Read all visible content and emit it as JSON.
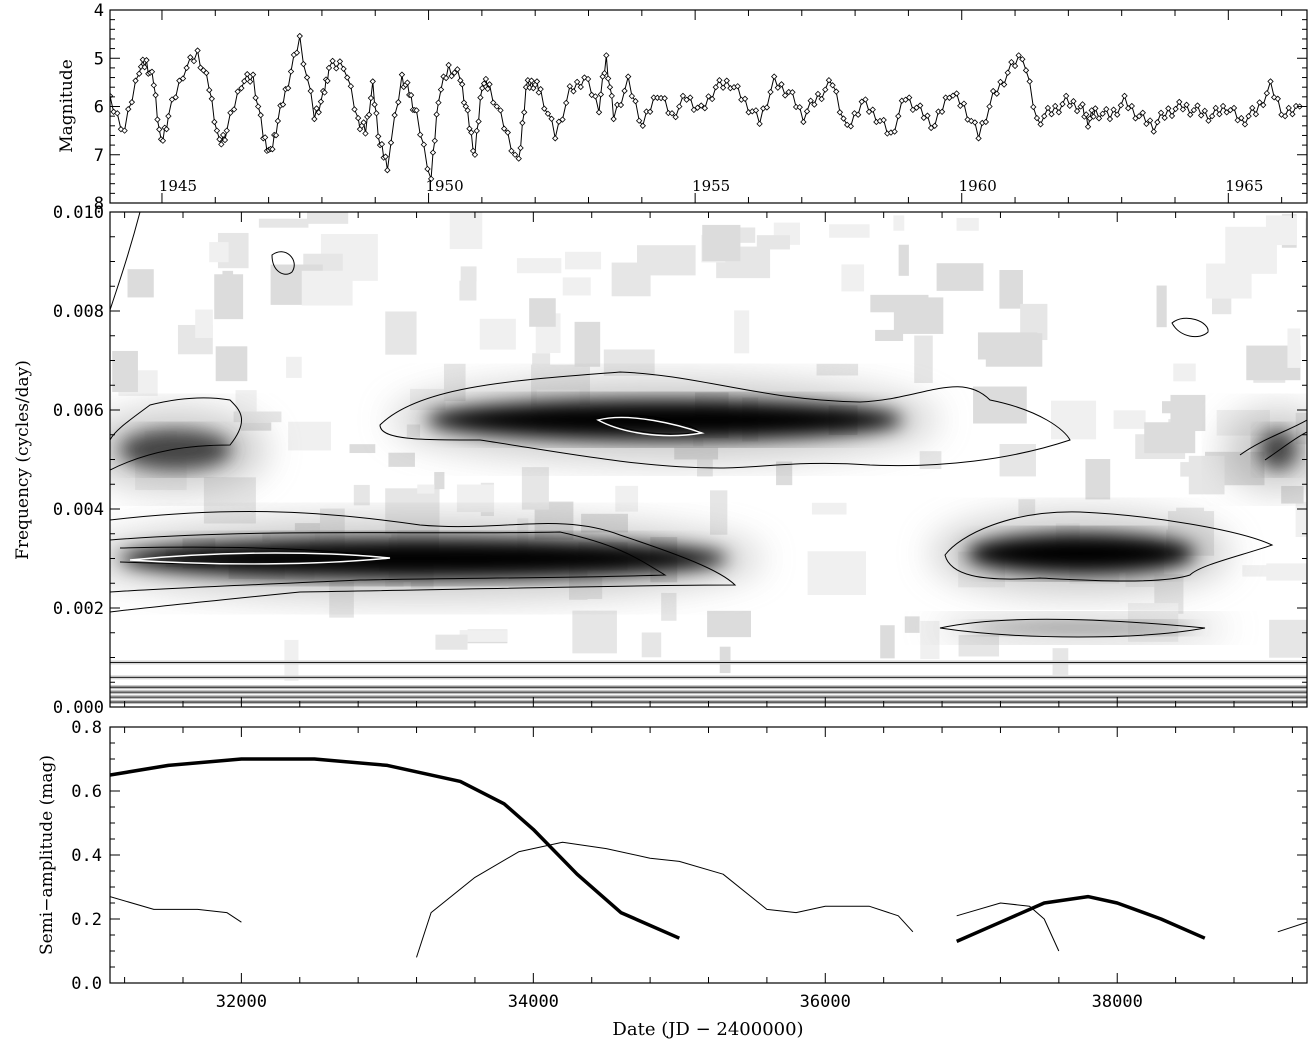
{
  "chart_data": [
    {
      "type": "line",
      "ylabel": "Magnitude",
      "ylim": [
        8,
        4
      ],
      "yticks": [
        "4",
        "5",
        "6",
        "7",
        "8"
      ],
      "year_labels": [
        "1945",
        "1950",
        "1955",
        "1960",
        "1965"
      ],
      "marker": "diamond",
      "series": [
        {
          "x": [
            31100,
            31200,
            31300,
            31350,
            31400,
            31450,
            31500,
            31600,
            31700,
            31780,
            31850,
            31900,
            32000,
            32080,
            32150,
            32200,
            32250,
            32320,
            32400,
            32500,
            32560,
            32600,
            32700,
            32800,
            32850,
            32900,
            32950,
            33000,
            33100,
            33150,
            33200,
            33300,
            33350,
            33420,
            33500,
            33550,
            33600,
            33650,
            33700,
            33800,
            33900,
            33950,
            34000,
            34050,
            34150,
            34250,
            34350,
            34450,
            34500,
            34550,
            34650,
            34750,
            34850,
            34950,
            35050,
            35150,
            35250,
            35350,
            35450,
            35550,
            35650,
            35750,
            35850,
            35950,
            36050,
            36150,
            36250,
            36350,
            36450,
            36550,
            36650,
            36750,
            36850,
            36950,
            37050,
            37150,
            37250,
            37350,
            37450,
            37550,
            37650,
            37750,
            37800,
            37850,
            37950,
            38050,
            38150,
            38250,
            38350,
            38450,
            38550,
            38650,
            38750,
            38850,
            38950,
            39050,
            39150,
            39250
          ],
          "y": [
            5.9,
            6.5,
            5.2,
            5.1,
            5.5,
            6.8,
            6.2,
            5.3,
            4.9,
            5.6,
            6.8,
            6.5,
            5.5,
            5.4,
            6.6,
            7.0,
            6.3,
            5.5,
            4.6,
            6.2,
            5.8,
            5.2,
            5.1,
            6.3,
            6.5,
            5.6,
            6.8,
            7.2,
            5.4,
            5.7,
            6.2,
            7.5,
            5.8,
            5.2,
            5.4,
            6.2,
            7.0,
            5.5,
            5.6,
            6.4,
            7.2,
            5.6,
            5.5,
            5.7,
            6.6,
            5.7,
            5.4,
            6.0,
            5.0,
            6.2,
            5.5,
            6.4,
            5.7,
            6.2,
            5.8,
            6.1,
            5.6,
            5.5,
            5.9,
            6.3,
            5.5,
            5.7,
            6.2,
            5.8,
            5.5,
            6.5,
            5.9,
            6.2,
            6.6,
            5.8,
            6.1,
            6.4,
            5.7,
            6.0,
            6.6,
            5.8,
            5.3,
            4.9,
            6.3,
            6.1,
            5.9,
            6.0,
            6.3,
            6.1,
            6.2,
            5.9,
            6.2,
            6.4,
            6.1,
            6.0,
            6.1,
            6.2,
            6.0,
            6.3,
            6.1,
            5.6,
            6.2,
            6.0
          ]
        }
      ]
    },
    {
      "type": "heatmap",
      "ylabel": "Frequency (cycles/day)",
      "ylim": [
        0.0,
        0.01
      ],
      "yticks": [
        "0.000",
        "0.002",
        "0.004",
        "0.006",
        "0.008",
        "0.010"
      ],
      "xlim": [
        31100,
        39300
      ],
      "features": [
        {
          "name": "period-330d",
          "x": [
            31100,
            35400
          ],
          "freq": 0.003,
          "strength": "strong"
        },
        {
          "name": "period-175d",
          "x": [
            33200,
            36600
          ],
          "freq": 0.0058,
          "strength": "strong"
        },
        {
          "name": "period-330d-late",
          "x": [
            36900,
            38600
          ],
          "freq": 0.0031,
          "strength": "strong"
        },
        {
          "name": "period-175d-early",
          "x": [
            31100,
            32000
          ],
          "freq": 0.0052,
          "strength": "moderate"
        },
        {
          "name": "period-175d-late",
          "x": [
            38900,
            39300
          ],
          "freq": 0.0052,
          "strength": "moderate"
        },
        {
          "name": "low-freq-band",
          "x": [
            36900,
            38600
          ],
          "freq": 0.0016,
          "strength": "weak"
        }
      ]
    },
    {
      "type": "line",
      "xlabel": "Date (JD − 2400000)",
      "ylabel": "Semi−amplitude (mag)",
      "xlim": [
        31100,
        39300
      ],
      "ylim": [
        0.0,
        0.8
      ],
      "xticks": [
        "32000",
        "34000",
        "36000",
        "38000"
      ],
      "yticks": [
        "0.0",
        "0.2",
        "0.4",
        "0.6",
        "0.8"
      ],
      "series": [
        {
          "style": "thick",
          "x": [
            31100,
            31500,
            32000,
            32500,
            33000,
            33500,
            33800,
            34000,
            34300,
            34600,
            35000
          ],
          "y": [
            0.65,
            0.68,
            0.7,
            0.7,
            0.68,
            0.63,
            0.56,
            0.48,
            0.34,
            0.22,
            0.14
          ]
        },
        {
          "style": "thick",
          "x": [
            36900,
            37200,
            37500,
            37800,
            38000,
            38300,
            38600
          ],
          "y": [
            0.13,
            0.19,
            0.25,
            0.27,
            0.25,
            0.2,
            0.14
          ]
        },
        {
          "style": "thin",
          "x": [
            31100,
            31400,
            31700,
            31900,
            32000
          ],
          "y": [
            0.27,
            0.23,
            0.23,
            0.22,
            0.19
          ]
        },
        {
          "style": "thin",
          "x": [
            33200,
            33300,
            33600,
            33900,
            34200,
            34500,
            34800,
            35000,
            35300,
            35600,
            35800,
            36000,
            36300,
            36500,
            36600
          ],
          "y": [
            0.08,
            0.22,
            0.33,
            0.41,
            0.44,
            0.42,
            0.39,
            0.38,
            0.34,
            0.23,
            0.22,
            0.24,
            0.24,
            0.21,
            0.16
          ]
        },
        {
          "style": "thin",
          "x": [
            36900,
            37200,
            37400,
            37500,
            37600
          ],
          "y": [
            0.21,
            0.25,
            0.24,
            0.2,
            0.1
          ]
        },
        {
          "style": "thin",
          "x": [
            39100,
            39300
          ],
          "y": [
            0.16,
            0.19
          ]
        }
      ]
    }
  ]
}
